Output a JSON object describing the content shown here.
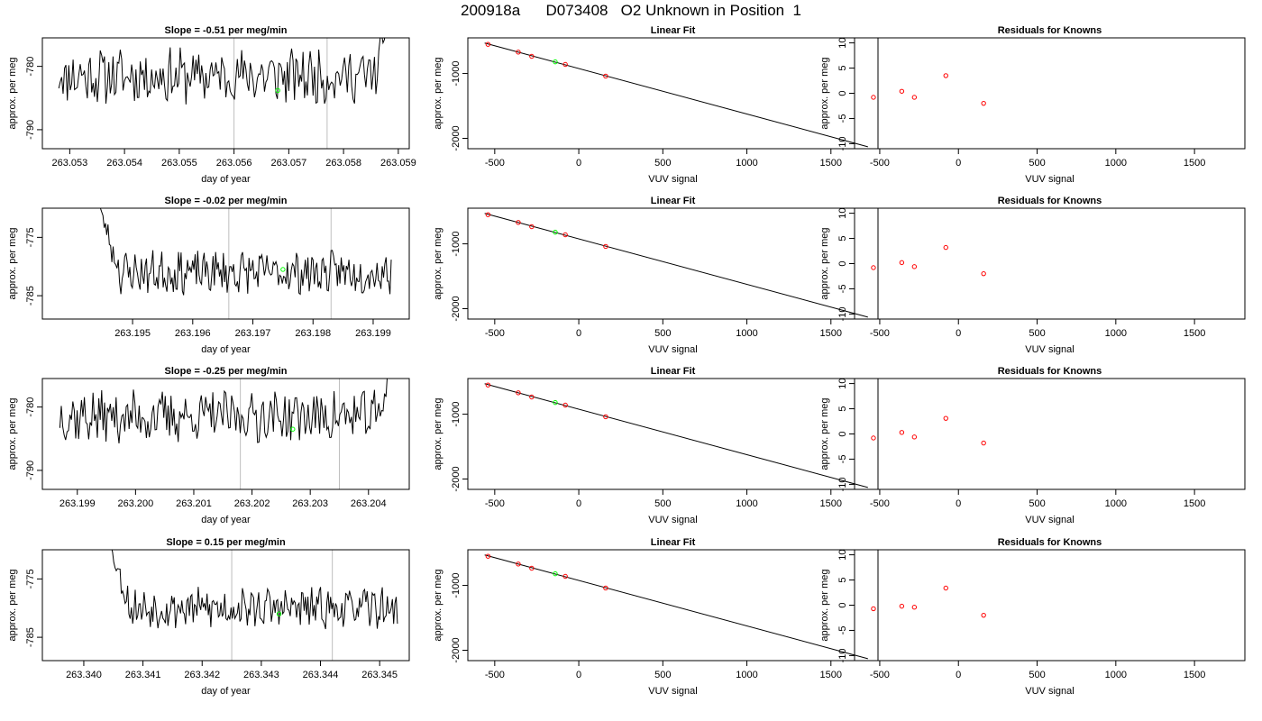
{
  "page_title": "200918a      D073408   O2 Unknown in Position  1",
  "colors": {
    "trace": "#000000",
    "marker_vline": "#bebebe",
    "unknown_point": "#00ff00",
    "known_point": "#ff0000",
    "fit_line": "#000000"
  },
  "chart_data": [
    {
      "id": "row1-time-series",
      "type": "line",
      "title": "Slope =  -0.51  per meg/min",
      "xlabel": "day of year",
      "ylabel": "approx. per meg",
      "xlim": [
        263.0525,
        263.0592
      ],
      "ylim": [
        -793.0,
        -775.5
      ],
      "xticks": [
        263.053,
        263.054,
        263.055,
        263.056,
        263.057,
        263.058,
        263.059
      ],
      "xtick_labels": [
        "263.053",
        "263.054",
        "263.055",
        "263.056",
        "263.057",
        "263.058",
        "263.059"
      ],
      "yticks": [
        -780,
        -790
      ],
      "ytick_labels": [
        "-780",
        "-790"
      ],
      "vlines": [
        263.056,
        263.0577
      ],
      "series": [
        {
          "x_start": 263.0528,
          "x_end": 263.0588,
          "base": -781.5,
          "amp": 3.8,
          "seed": 11,
          "lead_in": null,
          "spike_end": -775
        }
      ],
      "marker": {
        "x": 263.0568,
        "y": -783.8
      }
    },
    {
      "id": "row1-linear-fit",
      "type": "scatter",
      "title": "Linear Fit",
      "xlabel": "VUV signal",
      "ylabel": "approx. per meg",
      "xlim": [
        -660,
        1780
      ],
      "ylim": [
        -2160,
        -450
      ],
      "xticks": [
        -500,
        0,
        500,
        1000,
        1500
      ],
      "xtick_labels": [
        "-500",
        "0",
        "500",
        "1000",
        "1500"
      ],
      "yticks": [
        -1000,
        -2000
      ],
      "ytick_labels": [
        "-1000",
        "-2000"
      ],
      "fit_line": {
        "x": [
          -560,
          1720
        ],
        "y": [
          -530,
          -2130
        ]
      },
      "known_points": {
        "x": [
          -540,
          -360,
          -280,
          -80,
          160
        ],
        "y": [
          -550,
          -670,
          -735,
          -860,
          -1040
        ]
      },
      "unknown_points": {
        "x": [
          -140
        ],
        "y": [
          -820
        ]
      }
    },
    {
      "id": "row1-residuals",
      "type": "scatter",
      "title": "Residuals for Knowns",
      "xlabel": "VUV signal",
      "ylabel": "approx. per meg",
      "xlim": [
        -660,
        1820
      ],
      "ylim": [
        -11,
        11
      ],
      "xticks": [
        -500,
        0,
        500,
        1000,
        1500
      ],
      "xtick_labels": [
        "-500",
        "0",
        "500",
        "1000",
        "1500"
      ],
      "yticks": [
        10,
        5,
        0,
        -5,
        -10
      ],
      "ytick_labels": [
        "10",
        "5",
        "0",
        "-5",
        "-10"
      ],
      "known_points": {
        "x": [
          -540,
          -360,
          -280,
          -80,
          160
        ],
        "y": [
          -0.8,
          0.4,
          -0.8,
          3.5,
          -2.0
        ]
      }
    },
    {
      "id": "row2-time-series",
      "type": "line",
      "title": "Slope =  -0.02  per meg/min",
      "xlabel": "day of year",
      "ylabel": "approx. per meg",
      "xlim": [
        263.1935,
        263.1996
      ],
      "ylim": [
        -789.0,
        -770.0
      ],
      "xticks": [
        263.195,
        263.196,
        263.197,
        263.198,
        263.199
      ],
      "xtick_labels": [
        "263.195",
        "263.196",
        "263.197",
        "263.198",
        "263.199"
      ],
      "yticks": [
        -775,
        -785
      ],
      "ytick_labels": [
        "-775",
        "-785"
      ],
      "vlines": [
        263.1966,
        263.1983
      ],
      "series": [
        {
          "x_start": 263.1944,
          "x_end": 263.1993,
          "base": -781,
          "amp": 3.2,
          "seed": 23,
          "lead_in": -770,
          "spike_end": null
        }
      ],
      "marker": {
        "x": 263.1975,
        "y": -780.5
      }
    },
    {
      "id": "row2-linear-fit",
      "type": "scatter",
      "title": "Linear Fit",
      "xlabel": "VUV signal",
      "ylabel": "approx. per meg",
      "xlim": [
        -660,
        1780
      ],
      "ylim": [
        -2160,
        -450
      ],
      "xticks": [
        -500,
        0,
        500,
        1000,
        1500
      ],
      "xtick_labels": [
        "-500",
        "0",
        "500",
        "1000",
        "1500"
      ],
      "yticks": [
        -1000,
        -2000
      ],
      "ytick_labels": [
        "-1000",
        "-2000"
      ],
      "fit_line": {
        "x": [
          -560,
          1720
        ],
        "y": [
          -530,
          -2130
        ]
      },
      "known_points": {
        "x": [
          -540,
          -360,
          -280,
          -80,
          160
        ],
        "y": [
          -550,
          -670,
          -735,
          -860,
          -1040
        ]
      },
      "unknown_points": {
        "x": [
          -140
        ],
        "y": [
          -820
        ]
      }
    },
    {
      "id": "row2-residuals",
      "type": "scatter",
      "title": "Residuals for Knowns",
      "xlabel": "VUV signal",
      "ylabel": "approx. per meg",
      "xlim": [
        -660,
        1820
      ],
      "ylim": [
        -11,
        11
      ],
      "xticks": [
        -500,
        0,
        500,
        1000,
        1500
      ],
      "xtick_labels": [
        "-500",
        "0",
        "500",
        "1000",
        "1500"
      ],
      "yticks": [
        10,
        5,
        0,
        -5,
        -10
      ],
      "ytick_labels": [
        "10",
        "5",
        "0",
        "-5",
        "-10"
      ],
      "known_points": {
        "x": [
          -540,
          -360,
          -280,
          -80,
          160
        ],
        "y": [
          -0.8,
          0.2,
          -0.6,
          3.2,
          -2.0
        ]
      }
    },
    {
      "id": "row3-time-series",
      "type": "line",
      "title": "Slope =  -0.25  per meg/min",
      "xlabel": "day of year",
      "ylabel": "approx. per meg",
      "xlim": [
        263.1984,
        263.2047
      ],
      "ylim": [
        -793.0,
        -775.5
      ],
      "xticks": [
        263.199,
        263.2,
        263.201,
        263.202,
        263.203,
        263.204
      ],
      "xtick_labels": [
        "263.199",
        "263.200",
        "263.201",
        "263.202",
        "263.203",
        "263.204"
      ],
      "yticks": [
        -780,
        -790
      ],
      "ytick_labels": [
        "-780",
        "-790"
      ],
      "vlines": [
        263.2018,
        263.2035
      ],
      "series": [
        {
          "x_start": 263.1987,
          "x_end": 263.2044,
          "base": -781.5,
          "amp": 3.6,
          "seed": 37,
          "lead_in": null,
          "spike_end": -775
        }
      ],
      "marker": {
        "x": 263.2027,
        "y": -783.5
      }
    },
    {
      "id": "row3-linear-fit",
      "type": "scatter",
      "title": "Linear Fit",
      "xlabel": "VUV signal",
      "ylabel": "approx. per meg",
      "xlim": [
        -660,
        1780
      ],
      "ylim": [
        -2160,
        -450
      ],
      "xticks": [
        -500,
        0,
        500,
        1000,
        1500
      ],
      "xtick_labels": [
        "-500",
        "0",
        "500",
        "1000",
        "1500"
      ],
      "yticks": [
        -1000,
        -2000
      ],
      "ytick_labels": [
        "-1000",
        "-2000"
      ],
      "fit_line": {
        "x": [
          -560,
          1720
        ],
        "y": [
          -530,
          -2130
        ]
      },
      "known_points": {
        "x": [
          -540,
          -360,
          -280,
          -80,
          160
        ],
        "y": [
          -550,
          -670,
          -735,
          -860,
          -1040
        ]
      },
      "unknown_points": {
        "x": [
          -140
        ],
        "y": [
          -820
        ]
      }
    },
    {
      "id": "row3-residuals",
      "type": "scatter",
      "title": "Residuals for Knowns",
      "xlabel": "VUV signal",
      "ylabel": "approx. per meg",
      "xlim": [
        -660,
        1820
      ],
      "ylim": [
        -11,
        11
      ],
      "xticks": [
        -500,
        0,
        500,
        1000,
        1500
      ],
      "xtick_labels": [
        "-500",
        "0",
        "500",
        "1000",
        "1500"
      ],
      "yticks": [
        10,
        5,
        0,
        -5,
        -10
      ],
      "ytick_labels": [
        "10",
        "5",
        "0",
        "-5",
        "-10"
      ],
      "known_points": {
        "x": [
          -540,
          -360,
          -280,
          -80,
          160
        ],
        "y": [
          -0.8,
          0.3,
          -0.6,
          3.1,
          -1.8
        ]
      }
    },
    {
      "id": "row4-time-series",
      "type": "line",
      "title": "Slope =  0.15  per meg/min",
      "xlabel": "day of year",
      "ylabel": "approx. per meg",
      "xlim": [
        263.3393,
        263.3455
      ],
      "ylim": [
        -789.0,
        -770.0
      ],
      "xticks": [
        263.34,
        263.341,
        263.342,
        263.343,
        263.344,
        263.345
      ],
      "xtick_labels": [
        "263.340",
        "263.341",
        "263.342",
        "263.343",
        "263.344",
        "263.345"
      ],
      "yticks": [
        -775,
        -785
      ],
      "ytick_labels": [
        "-775",
        "-785"
      ],
      "vlines": [
        263.3425,
        263.3442
      ],
      "series": [
        {
          "x_start": 263.3404,
          "x_end": 263.3453,
          "base": -780,
          "amp": 3.0,
          "seed": 53,
          "lead_in": -770,
          "spike_end": null
        }
      ],
      "marker": {
        "x": 263.3433,
        "y": -781.0
      }
    },
    {
      "id": "row4-linear-fit",
      "type": "scatter",
      "title": "Linear Fit",
      "xlabel": "VUV signal",
      "ylabel": "approx. per meg",
      "xlim": [
        -660,
        1780
      ],
      "ylim": [
        -2160,
        -450
      ],
      "xticks": [
        -500,
        0,
        500,
        1000,
        1500
      ],
      "xtick_labels": [
        "-500",
        "0",
        "500",
        "1000",
        "1500"
      ],
      "yticks": [
        -1000,
        -2000
      ],
      "ytick_labels": [
        "-1000",
        "-2000"
      ],
      "fit_line": {
        "x": [
          -560,
          1720
        ],
        "y": [
          -530,
          -2130
        ]
      },
      "known_points": {
        "x": [
          -540,
          -360,
          -280,
          -80,
          160
        ],
        "y": [
          -550,
          -670,
          -735,
          -860,
          -1040
        ]
      },
      "unknown_points": {
        "x": [
          -140
        ],
        "y": [
          -820
        ]
      }
    },
    {
      "id": "row4-residuals",
      "type": "scatter",
      "title": "Residuals for Knowns",
      "xlabel": "VUV signal",
      "ylabel": "approx. per meg",
      "xlim": [
        -660,
        1820
      ],
      "ylim": [
        -11,
        11
      ],
      "xticks": [
        -500,
        0,
        500,
        1000,
        1500
      ],
      "xtick_labels": [
        "-500",
        "0",
        "500",
        "1000",
        "1500"
      ],
      "yticks": [
        10,
        5,
        0,
        -5,
        -10
      ],
      "ytick_labels": [
        "10",
        "5",
        "0",
        "-5",
        "-10"
      ],
      "known_points": {
        "x": [
          -540,
          -360,
          -280,
          -80,
          160
        ],
        "y": [
          -0.7,
          -0.2,
          -0.4,
          3.4,
          -2.0
        ]
      }
    }
  ]
}
